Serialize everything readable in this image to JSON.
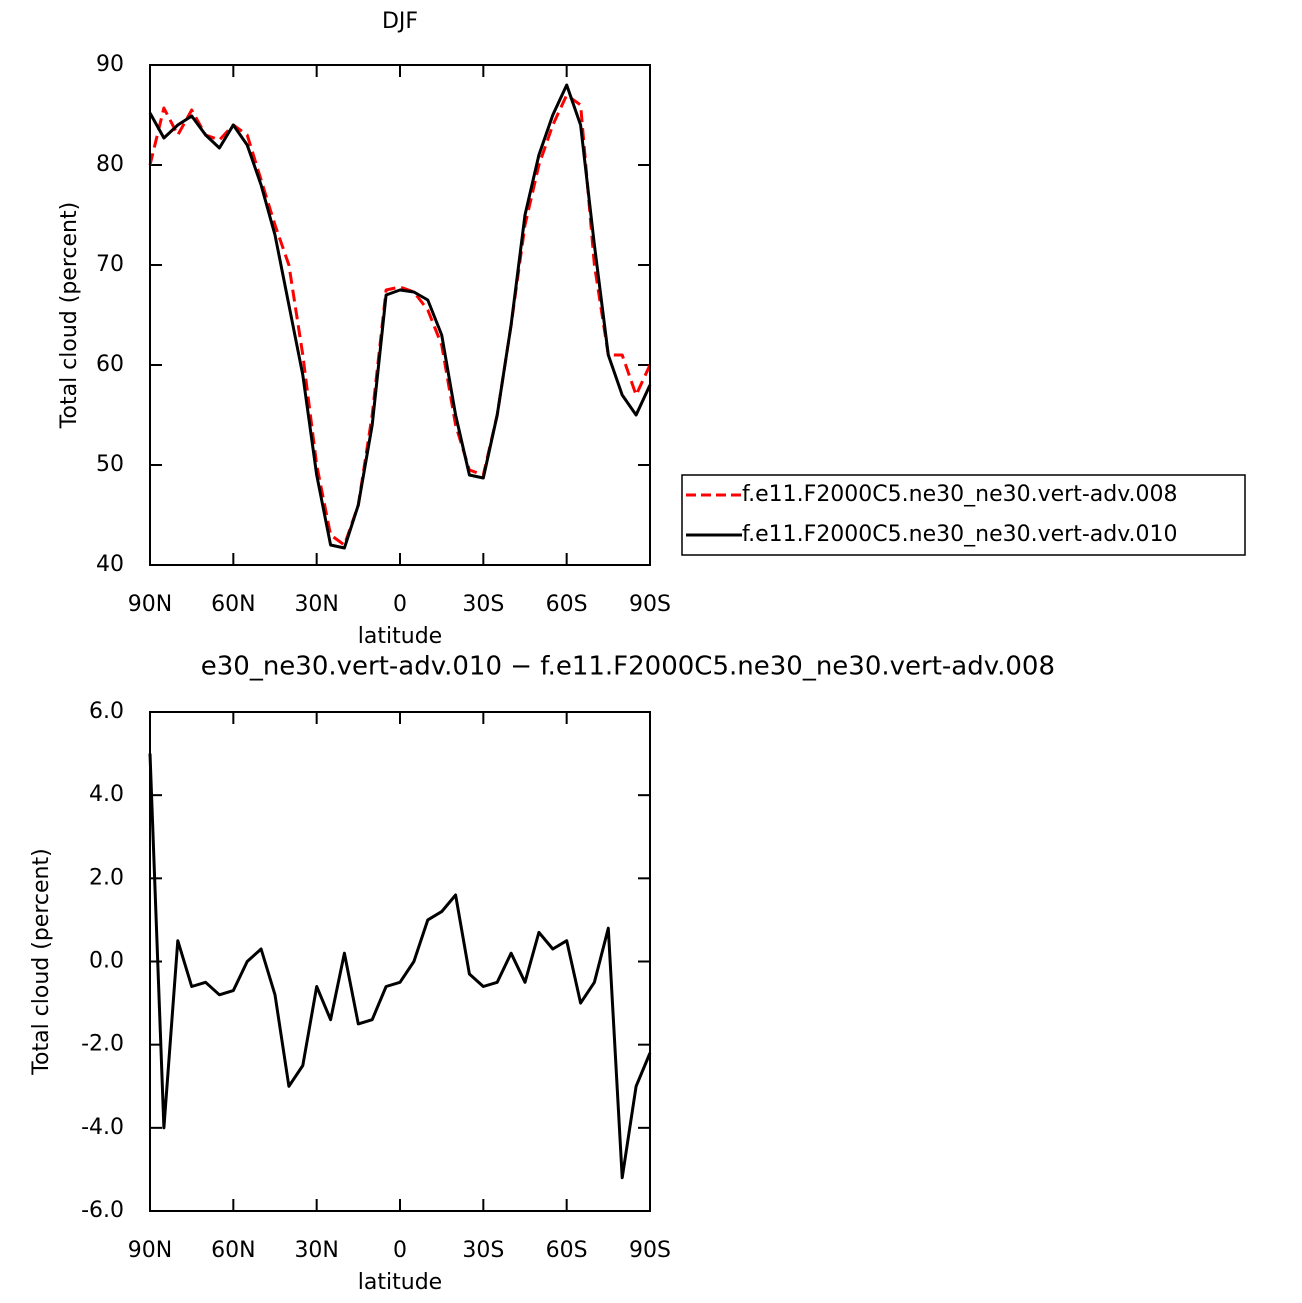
{
  "chart_data": [
    {
      "type": "line",
      "title": "DJF",
      "xlabel": "latitude",
      "ylabel": "Total cloud (percent)",
      "x": [
        90,
        85,
        80,
        75,
        70,
        65,
        60,
        55,
        50,
        45,
        40,
        35,
        30,
        25,
        20,
        15,
        10,
        5,
        0,
        -5,
        -10,
        -15,
        -20,
        -25,
        -30,
        -35,
        -40,
        -45,
        -50,
        -55,
        -60,
        -65,
        -70,
        -75,
        -80,
        -85,
        -90
      ],
      "series": [
        {
          "name": "f.e11.F2000C5.ne30_ne30.vert-adv.008",
          "color": "#ff0000",
          "dash": true,
          "values": [
            80,
            85.7,
            83,
            85.5,
            83,
            82.5,
            84,
            83,
            78.5,
            74,
            70,
            61,
            50,
            43,
            42,
            46,
            55,
            67.5,
            67.8,
            67.3,
            65.5,
            62,
            54,
            49.5,
            49,
            55,
            64,
            74,
            80,
            84,
            87,
            86,
            70,
            61,
            61,
            57,
            60
          ]
        },
        {
          "name": "f.e11.F2000C5.ne30_ne30.vert-adv.010",
          "color": "#000000",
          "dash": false,
          "values": [
            85.2,
            82.7,
            84,
            84.9,
            83,
            81.7,
            84,
            82,
            78,
            73,
            66,
            59,
            49,
            42,
            41.7,
            46,
            54,
            67,
            67.5,
            67.3,
            66.5,
            63,
            55,
            49,
            48.7,
            55,
            64,
            75,
            81,
            85,
            88,
            84,
            72,
            61,
            57,
            55,
            58
          ]
        }
      ],
      "xlim": [
        90,
        -90
      ],
      "ylim": [
        40,
        90
      ],
      "xticks": [
        {
          "value": 90,
          "label": "90N"
        },
        {
          "value": 60,
          "label": "60N"
        },
        {
          "value": 30,
          "label": "30N"
        },
        0,
        {
          "value": -30,
          "label": "30S"
        },
        {
          "value": -60,
          "label": "60S"
        },
        {
          "value": -90,
          "label": "90S"
        }
      ],
      "yticks": [
        40,
        50,
        60,
        70,
        80,
        90
      ],
      "legend": "right"
    },
    {
      "type": "line",
      "title": "e30_ne30.vert-adv.010 − f.e11.F2000C5.ne30_ne30.vert-adv.008",
      "xlabel": "latitude",
      "ylabel": "Total cloud (percent)",
      "x": [
        90,
        85,
        80,
        75,
        70,
        65,
        60,
        55,
        50,
        45,
        40,
        35,
        30,
        25,
        20,
        15,
        10,
        5,
        0,
        -5,
        -10,
        -15,
        -20,
        -25,
        -30,
        -35,
        -40,
        -45,
        -50,
        -55,
        -60,
        -65,
        -70,
        -75,
        -80,
        -85,
        -90
      ],
      "color": "#000000",
      "values": [
        5.0,
        -4.0,
        0.5,
        -0.6,
        -0.5,
        -0.8,
        -0.7,
        0.0,
        0.3,
        -0.8,
        -3.0,
        -2.5,
        -0.6,
        -1.4,
        0.2,
        -1.5,
        -1.4,
        -0.6,
        -0.5,
        0.0,
        1.0,
        1.2,
        1.6,
        -0.3,
        -0.6,
        -0.5,
        0.2,
        -0.5,
        0.7,
        0.3,
        0.5,
        -1.0,
        -0.5,
        0.8,
        -5.2,
        -3.0,
        -2.2
      ],
      "xlim": [
        90,
        -90
      ],
      "ylim": [
        -6,
        6
      ],
      "xticks": [
        {
          "value": 90,
          "label": "90N"
        },
        {
          "value": 60,
          "label": "60N"
        },
        {
          "value": 30,
          "label": "30N"
        },
        0,
        {
          "value": -30,
          "label": "30S"
        },
        {
          "value": -60,
          "label": "60S"
        },
        {
          "value": -90,
          "label": "90S"
        }
      ],
      "yticks": [
        {
          "value": -6,
          "label": "-6.0"
        },
        {
          "value": -4,
          "label": "-4.0"
        },
        {
          "value": -2,
          "label": "-2.0"
        },
        {
          "value": 0,
          "label": "0.0"
        },
        {
          "value": 2,
          "label": "2.0"
        },
        {
          "value": 4,
          "label": "4.0"
        },
        {
          "value": 6,
          "label": "6.0"
        }
      ]
    }
  ]
}
